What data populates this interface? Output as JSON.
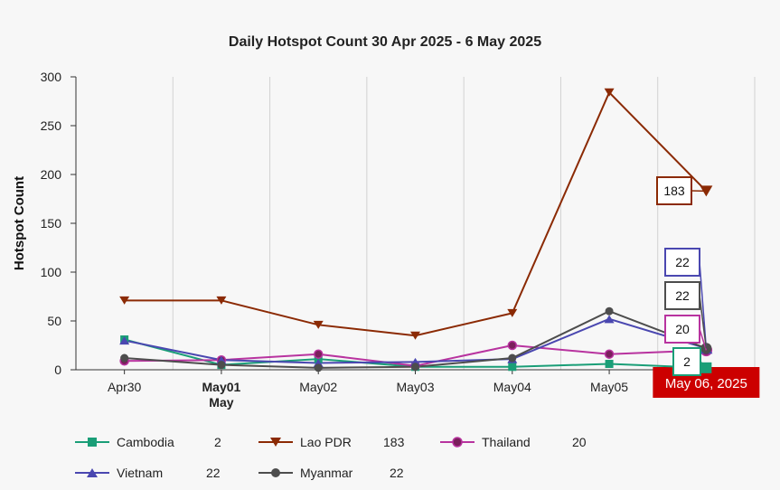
{
  "chart_data": {
    "type": "line",
    "title": "Daily Hotspot Count 30 Apr 2025 - 6 May 2025",
    "xlabel": "",
    "ylabel": "Hotspot Count",
    "ylim": [
      0,
      300
    ],
    "yticks": [
      0,
      50,
      100,
      150,
      200,
      250,
      300
    ],
    "categories": [
      "Apr30",
      "May01",
      "May02",
      "May03",
      "May04",
      "May05",
      "May06"
    ],
    "month_label": "May",
    "highlight_label": "May 06, 2025",
    "series": [
      {
        "name": "Cambodia",
        "color": "#1a9e77",
        "marker": "square",
        "values": [
          31,
          5,
          11,
          3,
          3,
          6,
          2
        ],
        "last_value": "2"
      },
      {
        "name": "Lao PDR",
        "color": "#8b2a04",
        "marker": "triangle-down",
        "values": [
          71,
          71,
          46,
          35,
          58,
          284,
          183
        ],
        "last_value": "183"
      },
      {
        "name": "Thailand",
        "color": "#b8339f",
        "marker": "circle",
        "values": [
          9,
          10,
          16,
          4,
          25,
          16,
          20
        ],
        "last_value": "20"
      },
      {
        "name": "Vietnam",
        "color": "#4a47b0",
        "marker": "triangle-up",
        "values": [
          30,
          10,
          7,
          8,
          11,
          52,
          22
        ],
        "last_value": "22"
      },
      {
        "name": "Myanmar",
        "color": "#4d4d4d",
        "marker": "circle",
        "values": [
          12,
          5,
          2,
          3,
          12,
          60,
          22
        ],
        "last_value": "22"
      }
    ]
  }
}
